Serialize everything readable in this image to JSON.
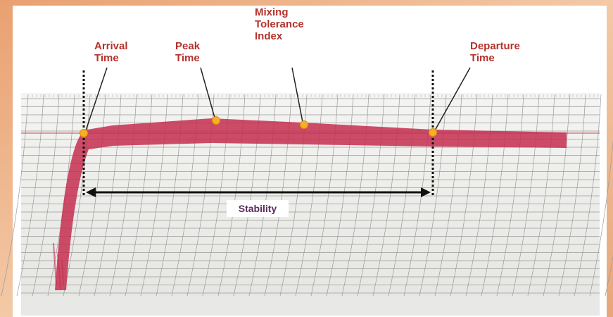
{
  "labels": [
    {
      "lines": [
        "Arrival",
        "Time"
      ]
    },
    {
      "lines": [
        "Peak",
        "Time"
      ]
    },
    {
      "lines": [
        "Mixing",
        "Tolerance",
        "Index"
      ]
    },
    {
      "lines": [
        "Departure",
        "Time"
      ]
    }
  ],
  "stability": "Stability"
}
